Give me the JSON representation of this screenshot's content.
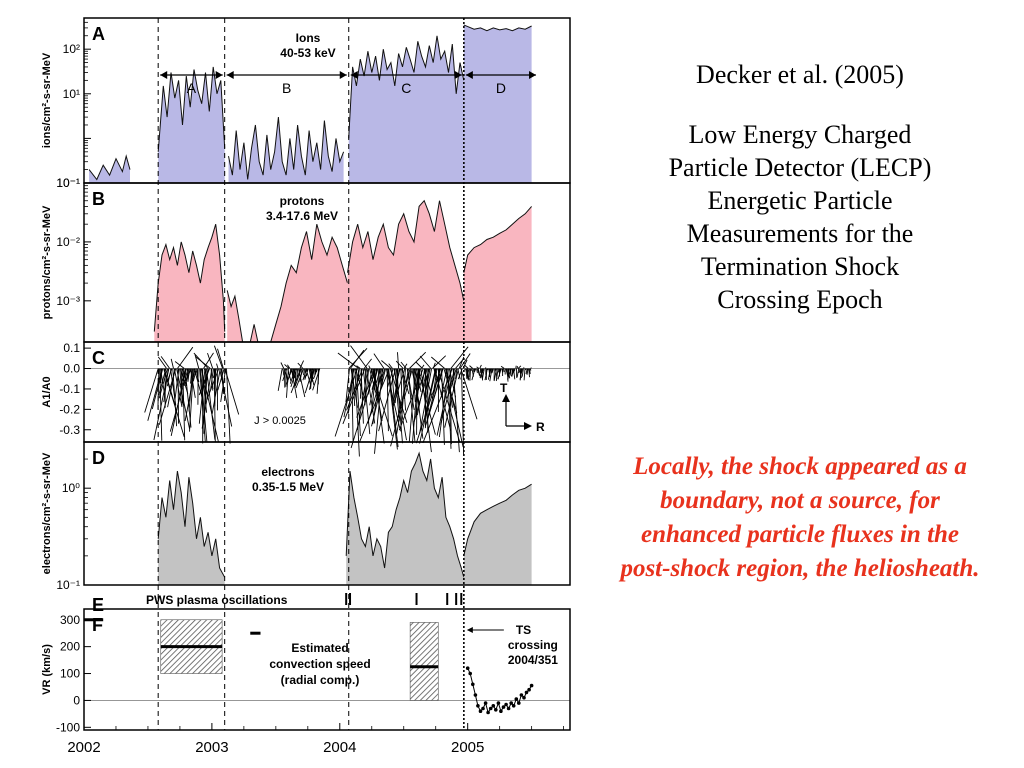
{
  "chart_data": {
    "type": "line",
    "x_axis": {
      "ticks": [
        "2002",
        "2003",
        "2004",
        "2005"
      ],
      "range": [
        2002.0,
        2005.8
      ]
    },
    "epoch_lines": [
      2002.58,
      2003.1,
      2004.07,
      2004.97
    ],
    "panels": [
      {
        "id": "A",
        "annotation": [
          "Ions",
          "40-53 keV"
        ],
        "ylabel": "ions/cm²-s-sr-MeV",
        "yscale": "log",
        "ylim": [
          0.1,
          500
        ],
        "yticks": [
          "10⁻¹",
          "10¹",
          "10²"
        ],
        "fill": "#b9b8e6",
        "regions": [
          "A",
          "B",
          "C",
          "D"
        ],
        "series": [
          {
            "x": [
              2002.04,
              2002.1,
              2002.15,
              2002.2,
              2002.25,
              2002.3,
              2002.33,
              2002.36
            ],
            "y": [
              0.2,
              0.12,
              0.25,
              0.15,
              0.35,
              0.18,
              0.4,
              0.2
            ]
          },
          {
            "x": [
              2002.58,
              2002.62,
              2002.65,
              2002.68,
              2002.71,
              2002.74,
              2002.77,
              2002.8,
              2002.83,
              2002.86,
              2002.89,
              2002.92,
              2002.95,
              2002.98,
              2003.01,
              2003.04,
              2003.07,
              2003.1
            ],
            "y": [
              0.5,
              15,
              3,
              30,
              8,
              20,
              2,
              25,
              5,
              35,
              12,
              6,
              30,
              4,
              40,
              10,
              20,
              0.6
            ]
          },
          {
            "x": [
              2003.13,
              2003.16,
              2003.19,
              2003.22,
              2003.25,
              2003.28,
              2003.31,
              2003.34,
              2003.37,
              2003.4,
              2003.43,
              2003.46,
              2003.49,
              2003.52,
              2003.55,
              2003.58,
              2003.61,
              2003.64,
              2003.67,
              2003.7,
              2003.73,
              2003.76,
              2003.79,
              2003.82,
              2003.85,
              2003.88,
              2003.91,
              2003.94,
              2003.97,
              2004.0,
              2004.03
            ],
            "y": [
              0.4,
              0.15,
              1.5,
              0.2,
              0.8,
              0.12,
              0.6,
              2,
              0.3,
              0.15,
              1.2,
              0.2,
              0.5,
              3,
              0.3,
              0.15,
              1,
              0.2,
              2,
              0.4,
              0.15,
              1.5,
              0.3,
              0.8,
              0.2,
              2.5,
              0.4,
              0.18,
              1,
              0.3,
              0.5
            ]
          },
          {
            "x": [
              2004.07,
              2004.1,
              2004.13,
              2004.16,
              2004.19,
              2004.22,
              2004.25,
              2004.28,
              2004.31,
              2004.34,
              2004.37,
              2004.4,
              2004.43,
              2004.46,
              2004.49,
              2004.52,
              2004.55,
              2004.58,
              2004.61,
              2004.64,
              2004.67,
              2004.7,
              2004.73,
              2004.76,
              2004.79,
              2004.82,
              2004.85,
              2004.88,
              2004.91,
              2004.94,
              2004.97
            ],
            "y": [
              1,
              40,
              15,
              60,
              25,
              90,
              30,
              70,
              20,
              100,
              35,
              50,
              15,
              80,
              40,
              110,
              60,
              30,
              150,
              70,
              40,
              120,
              50,
              200,
              60,
              90,
              30,
              130,
              10,
              50,
              20
            ]
          },
          {
            "x": [
              2004.97,
              2005.0,
              2005.05,
              2005.1,
              2005.15,
              2005.2,
              2005.25,
              2005.3,
              2005.35,
              2005.4,
              2005.45,
              2005.5
            ],
            "y": [
              350,
              320,
              280,
              300,
              260,
              300,
              270,
              290,
              260,
              300,
              280,
              330
            ]
          }
        ]
      },
      {
        "id": "B",
        "annotation": [
          "protons",
          "3.4-17.6 MeV"
        ],
        "ylabel": "protons/cm²-s-sr-MeV",
        "yscale": "log",
        "ylim": [
          0.0002,
          0.1
        ],
        "yticks": [
          "10⁻³",
          "10⁻²",
          "10⁻¹"
        ],
        "fill": "#f9b6c0",
        "series": [
          {
            "x": [
              2002.55,
              2002.58,
              2002.61,
              2002.64,
              2002.67,
              2002.7,
              2002.73,
              2002.76,
              2002.79,
              2002.82,
              2002.85,
              2002.88,
              2002.91,
              2002.94,
              2002.97,
              2003.0,
              2003.03,
              2003.06,
              2003.09,
              2003.1
            ],
            "y": [
              0.0003,
              0.002,
              0.006,
              0.009,
              0.005,
              0.008,
              0.004,
              0.01,
              0.006,
              0.003,
              0.007,
              0.004,
              0.002,
              0.005,
              0.008,
              0.012,
              0.02,
              0.006,
              0.001,
              0.0003
            ]
          },
          {
            "x": [
              2003.12,
              2003.15,
              2003.18,
              2003.21,
              2003.24
            ],
            "y": [
              0.0015,
              0.0008,
              0.0012,
              0.0005,
              0.0002
            ]
          },
          {
            "x": [
              2003.3,
              2003.33,
              2003.36
            ],
            "y": [
              0.0002,
              0.0004,
              0.0002
            ]
          },
          {
            "x": [
              2003.46,
              2003.5,
              2003.54,
              2003.58,
              2003.62,
              2003.66,
              2003.7,
              2003.74,
              2003.78,
              2003.82,
              2003.86,
              2003.9,
              2003.94,
              2003.98,
              2004.02,
              2004.06
            ],
            "y": [
              0.0002,
              0.0004,
              0.0008,
              0.002,
              0.004,
              0.003,
              0.008,
              0.015,
              0.005,
              0.02,
              0.01,
              0.006,
              0.012,
              0.008,
              0.004,
              0.002
            ]
          },
          {
            "x": [
              2004.06,
              2004.1,
              2004.14,
              2004.18,
              2004.22,
              2004.26,
              2004.3,
              2004.34,
              2004.38,
              2004.42,
              2004.46,
              2004.5,
              2004.54,
              2004.58,
              2004.62,
              2004.66,
              2004.7,
              2004.74,
              2004.78,
              2004.82,
              2004.86,
              2004.9,
              2004.94,
              2004.97
            ],
            "y": [
              0.003,
              0.01,
              0.02,
              0.008,
              0.015,
              0.005,
              0.012,
              0.02,
              0.008,
              0.006,
              0.02,
              0.03,
              0.015,
              0.01,
              0.04,
              0.05,
              0.03,
              0.015,
              0.05,
              0.02,
              0.008,
              0.004,
              0.002,
              0.001
            ]
          },
          {
            "x": [
              2004.97,
              2005.0,
              2005.05,
              2005.1,
              2005.15,
              2005.2,
              2005.25,
              2005.3,
              2005.35,
              2005.4,
              2005.45,
              2005.5
            ],
            "y": [
              0.003,
              0.006,
              0.008,
              0.009,
              0.011,
              0.012,
              0.014,
              0.016,
              0.02,
              0.025,
              0.03,
              0.04
            ]
          }
        ]
      },
      {
        "id": "C",
        "annotation": [
          "J > 0.0025"
        ],
        "ylabel": "A1/A0",
        "yscale": "linear",
        "ylim": [
          -0.36,
          0.13
        ],
        "yticks": [
          "0.1",
          "0.0",
          "-0.1",
          "-0.2",
          "-0.3"
        ],
        "ytick_values": [
          0.1,
          0.0,
          -0.1,
          -0.2,
          -0.3
        ],
        "inset": {
          "t": "T",
          "r": "R"
        }
      },
      {
        "id": "D",
        "annotation": [
          "electrons",
          "0.35-1.5 MeV"
        ],
        "ylabel": "electrons/cm²-s-sr-MeV",
        "yscale": "log",
        "ylim": [
          0.1,
          3
        ],
        "yticks": [
          "10⁻¹",
          "10⁰"
        ],
        "fill": "#c3c3c3",
        "series": [
          {
            "x": [
              2002.58,
              2002.61,
              2002.64,
              2002.67,
              2002.7,
              2002.73,
              2002.76,
              2002.79,
              2002.82,
              2002.85,
              2002.88,
              2002.91,
              2002.94,
              2002.97,
              2003.0,
              2003.03,
              2003.06,
              2003.1
            ],
            "y": [
              0.3,
              0.8,
              0.5,
              1.2,
              0.6,
              1.5,
              0.9,
              0.4,
              1.3,
              0.7,
              0.3,
              0.5,
              0.25,
              0.35,
              0.2,
              0.3,
              0.15,
              0.12
            ]
          },
          {
            "x": [
              2004.05,
              2004.08,
              2004.11,
              2004.14,
              2004.17,
              2004.2,
              2004.23,
              2004.26,
              2004.29,
              2004.32,
              2004.35,
              2004.38,
              2004.41,
              2004.44,
              2004.47,
              2004.5,
              2004.53,
              2004.56,
              2004.59,
              2004.62,
              2004.65,
              2004.68,
              2004.71,
              2004.74,
              2004.77,
              2004.8,
              2004.83,
              2004.86,
              2004.89,
              2004.92,
              2004.95,
              2004.97
            ],
            "y": [
              0.2,
              1.5,
              0.8,
              0.5,
              0.3,
              0.25,
              0.4,
              0.2,
              0.3,
              0.25,
              0.15,
              0.35,
              0.4,
              0.6,
              0.8,
              1.2,
              0.9,
              1.5,
              1.8,
              2.3,
              1.5,
              1.2,
              2,
              1,
              0.8,
              1.3,
              0.5,
              0.4,
              0.3,
              0.2,
              0.15,
              0.12
            ]
          },
          {
            "x": [
              2004.97,
              2005.0,
              2005.05,
              2005.1,
              2005.15,
              2005.2,
              2005.25,
              2005.3,
              2005.35,
              2005.4,
              2005.45,
              2005.5
            ],
            "y": [
              0.2,
              0.3,
              0.45,
              0.55,
              0.6,
              0.65,
              0.7,
              0.75,
              0.85,
              0.95,
              1.0,
              1.1
            ]
          }
        ]
      },
      {
        "id": "E",
        "label": "PWS plasma oscillations",
        "events": [
          2004.05,
          2004.08,
          2004.6,
          2004.84,
          2004.91,
          2004.95
        ]
      },
      {
        "id": "F",
        "annotation": [
          "Estimated",
          "convection speed",
          "(radial comp.)"
        ],
        "ylabel": "VR (km/s)",
        "yscale": "linear",
        "ylim": [
          -110,
          340
        ],
        "yticks": [
          "300",
          "200",
          "100",
          "0",
          "-100"
        ],
        "ytick_values": [
          300,
          200,
          100,
          0,
          -100
        ],
        "segments": [
          {
            "x": [
              2002.0,
              2002.15
            ],
            "v": 300
          },
          {
            "x": [
              2002.6,
              2003.08
            ],
            "v": 200,
            "range": [
              100,
              300
            ]
          },
          {
            "x": [
              2003.3,
              2003.38
            ],
            "v": 250
          },
          {
            "x": [
              2004.55,
              2004.77
            ],
            "v": 125,
            "range": [
              0,
              290
            ]
          }
        ],
        "post_shock": {
          "x": [
            2005.0,
            2005.02,
            2005.04,
            2005.06,
            2005.08,
            2005.1,
            2005.12,
            2005.14,
            2005.16,
            2005.18,
            2005.2,
            2005.22,
            2005.24,
            2005.26,
            2005.28,
            2005.3,
            2005.32,
            2005.34,
            2005.36,
            2005.38,
            2005.4,
            2005.42,
            2005.44,
            2005.46,
            2005.48,
            2005.5
          ],
          "y": [
            120,
            100,
            60,
            20,
            -20,
            -40,
            -30,
            -10,
            -45,
            -30,
            -20,
            -35,
            -10,
            -40,
            -25,
            -15,
            -30,
            -10,
            -20,
            5,
            -10,
            20,
            10,
            30,
            40,
            55
          ]
        },
        "crossing_label": [
          "TS",
          "crossing",
          "2004/351"
        ]
      }
    ]
  },
  "citation": "Decker et al. (2005)",
  "title_lines": [
    "Low Energy Charged",
    "Particle Detector (LECP)",
    "Energetic Particle",
    "Measurements for the",
    "Termination Shock",
    "Crossing Epoch"
  ],
  "remark": "Locally, the shock appeared as a boundary, not a source, for enhanced particle fluxes in the post-shock region, the heliosheath."
}
